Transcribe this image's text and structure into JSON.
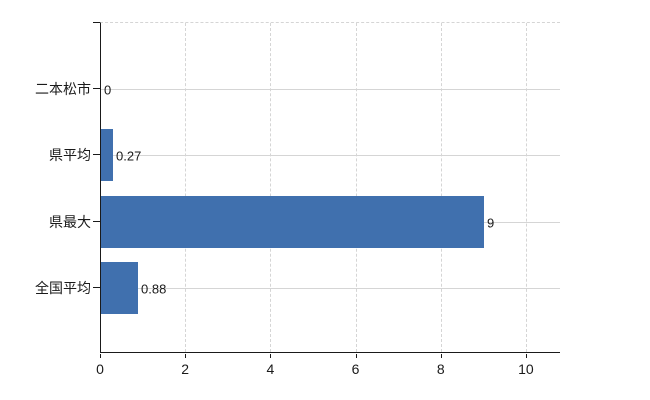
{
  "chart_data": {
    "type": "bar",
    "orientation": "horizontal",
    "title": "",
    "xlabel": "",
    "ylabel": "",
    "categories": [
      "二本松市",
      "県平均",
      "県最大",
      "全国平均"
    ],
    "values": [
      0,
      0.27,
      9,
      0.88
    ],
    "value_labels": [
      "0",
      "0.27",
      "9",
      "0.88"
    ],
    "xlim": [
      0,
      10.8
    ],
    "xticks": [
      0,
      2,
      4,
      6,
      8,
      10
    ],
    "xtick_labels": [
      "0",
      "2",
      "4",
      "6",
      "8",
      "10"
    ],
    "grid": true,
    "legend": false,
    "colors": {
      "bar": "#4070ae",
      "grid": "#d5d5d5",
      "axis": "#1a1a1a",
      "text": "#1a1a1a",
      "background": "#ffffff"
    }
  }
}
